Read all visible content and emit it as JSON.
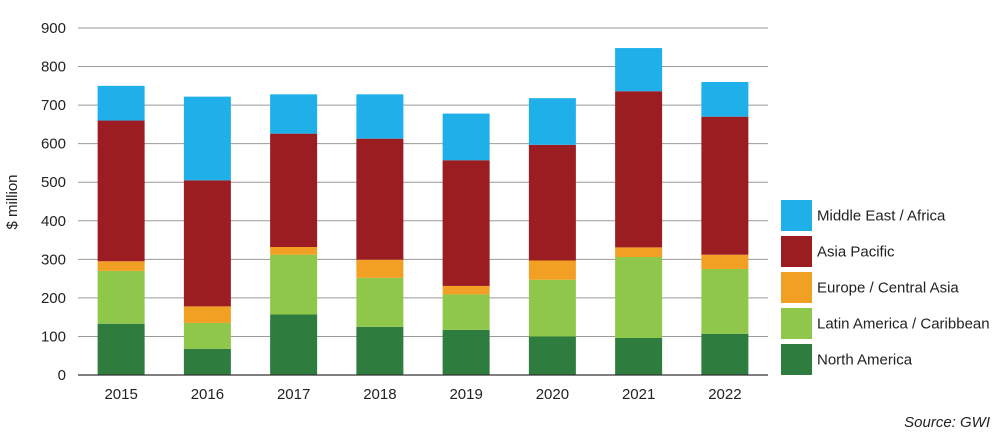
{
  "chart_data": {
    "type": "bar",
    "stacked": true,
    "categories": [
      "2015",
      "2016",
      "2017",
      "2018",
      "2019",
      "2020",
      "2021",
      "2022"
    ],
    "series": [
      {
        "name": "North America",
        "color": "#2e7d3f",
        "values": [
          133,
          68,
          157,
          125,
          117,
          100,
          96,
          107
        ]
      },
      {
        "name": "Latin America / Caribbean",
        "color": "#8fc74a",
        "values": [
          137,
          67,
          155,
          127,
          92,
          147,
          210,
          168
        ]
      },
      {
        "name": "Europe / Central Asia",
        "color": "#f2a024",
        "values": [
          25,
          43,
          20,
          47,
          22,
          50,
          25,
          37
        ]
      },
      {
        "name": "Asia Pacific",
        "color": "#9b1c21",
        "values": [
          365,
          327,
          294,
          314,
          326,
          300,
          405,
          358
        ]
      },
      {
        "name": "Middle East / Africa",
        "color": "#1fb0ea",
        "values": [
          90,
          217,
          102,
          115,
          121,
          121,
          112,
          90
        ]
      }
    ],
    "legend_order": [
      "Middle East / Africa",
      "Asia Pacific",
      "Europe / Central Asia",
      "Latin America / Caribbean",
      "North America"
    ],
    "ylabel": "$ million",
    "xlabel": "",
    "ylim": [
      0,
      900
    ],
    "yticks": [
      "0",
      "100",
      "200",
      "300",
      "400",
      "500",
      "600",
      "700",
      "800",
      "900"
    ],
    "grid": true,
    "legend_position": "right"
  },
  "source_text": "Source: GWI"
}
